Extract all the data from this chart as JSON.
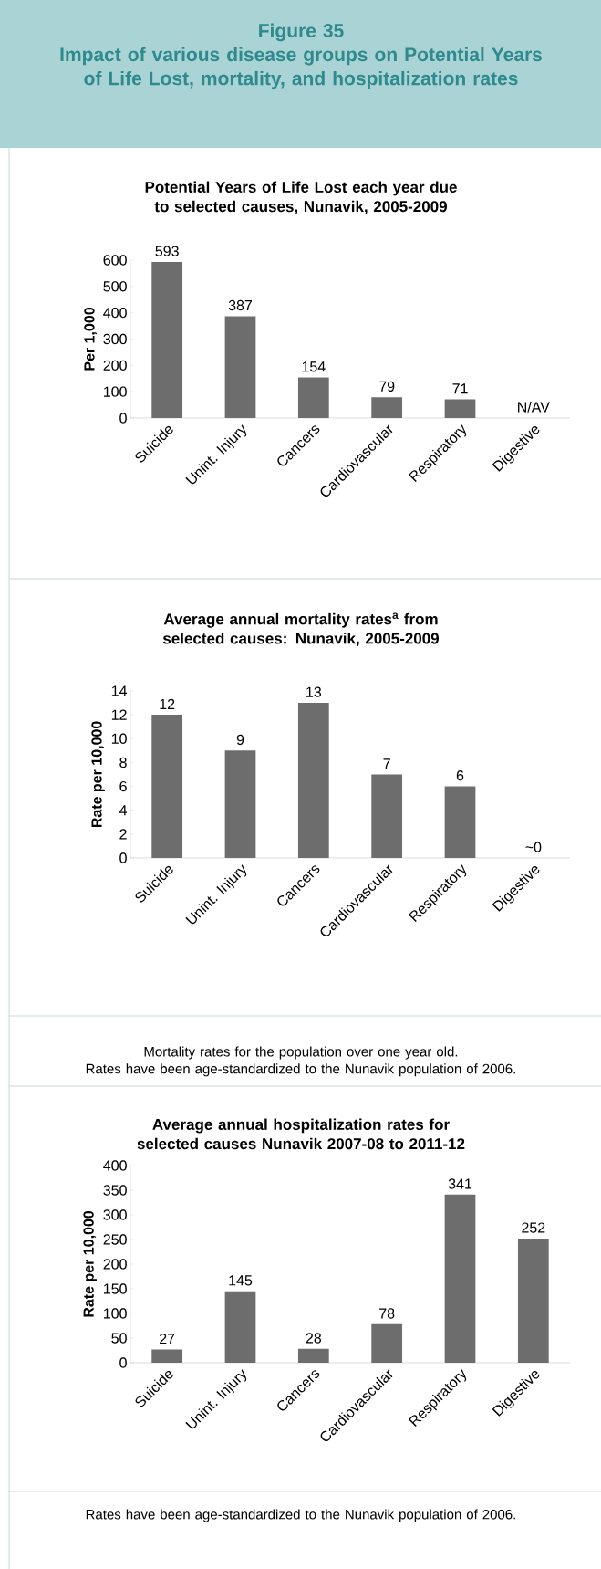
{
  "chart_data": [
    {
      "type": "other",
      "title": "Figure 35",
      "subtitle": "Impact of various disease groups on Potential Years of Life Lost, mortality, and hospitalization rates"
    },
    {
      "type": "bar",
      "title": "Potential Years of Life Lost each year due to selected causes, Nunavik, 2005-2009",
      "ylabel": "Per 1,000",
      "categories": [
        "Suicide",
        "Unint. Injury",
        "Cancers",
        "Cardiovascular",
        "Respiratory",
        "Digestive"
      ],
      "values": [
        593,
        387,
        154,
        79,
        71,
        null
      ],
      "value_labels": [
        "593",
        "387",
        "154",
        "79",
        "71",
        "N/AV"
      ],
      "color": "#6d6d6d",
      "ylim": [
        0,
        600
      ],
      "yticks": [
        0,
        100,
        200,
        300,
        400,
        500,
        600
      ]
    },
    {
      "type": "bar",
      "title": "Average annual mortality rates$^{a}$ from selected causes: Nunavik, 2005-2009",
      "ylabel": "Rate per 10,000",
      "categories": [
        "Suicide",
        "Unint. Injury",
        "Cancers",
        "Cardiovascular",
        "Respiratory",
        "Digestive"
      ],
      "values": [
        12,
        9,
        13,
        7,
        6,
        0
      ],
      "value_labels": [
        "12",
        "9",
        "13",
        "7",
        "6",
        "~0"
      ],
      "color": "#6d6d6d",
      "ylim": [
        0,
        14
      ],
      "yticks": [
        0,
        2,
        4,
        6,
        8,
        10,
        12,
        14
      ],
      "annotations": [
        "Mortality rates for the population over one year old.",
        "Rates have been age-standardized to the Nunavik population of 2006."
      ]
    },
    {
      "type": "bar",
      "title": "Average annual hospitalization rates for selected causes Nunavik 2007-08 to 2011-12",
      "ylabel": "Rate per 10,000",
      "categories": [
        "Suicide",
        "Unint. Injury",
        "Cancers",
        "Cardiovascular",
        "Respiratory",
        "Digestive"
      ],
      "values": [
        27,
        145,
        28,
        78,
        341,
        252
      ],
      "value_labels": [
        "27",
        "145",
        "28",
        "78",
        "341",
        "252"
      ],
      "color": "#6d6d6d",
      "ylim": [
        0,
        400
      ],
      "yticks": [
        0,
        50,
        100,
        150,
        200,
        250,
        300,
        350,
        400
      ],
      "annotations": [
        "Rates have been age-standardized to the Nunavik population of 2006."
      ]
    }
  ]
}
